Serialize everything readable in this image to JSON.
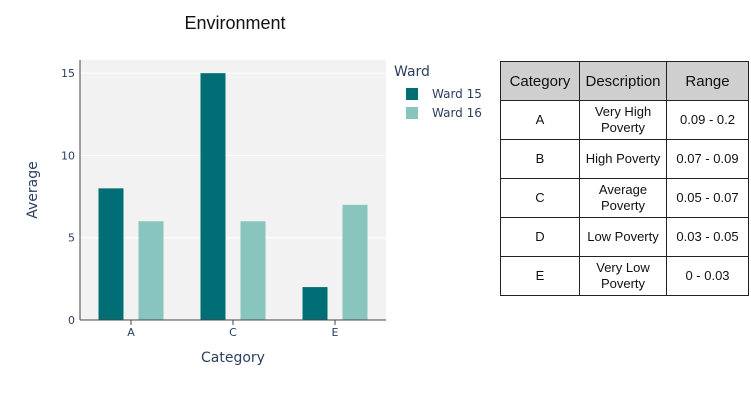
{
  "chart_data": {
    "type": "bar",
    "title": "Environment",
    "xlabel": "Category",
    "ylabel": "Average",
    "categories": [
      "A",
      "C",
      "E"
    ],
    "series": [
      {
        "name": "Ward 15",
        "color": "#006e74",
        "values": [
          8,
          15,
          2
        ]
      },
      {
        "name": "Ward 16",
        "color": "#88c5be",
        "values": [
          6,
          6,
          7
        ]
      }
    ],
    "ylim": [
      0,
      15.8
    ],
    "yticks": [
      0,
      5,
      10,
      15
    ],
    "grid": true,
    "legend_title": "Ward",
    "legend_position": "right"
  },
  "table": {
    "headers": [
      "Category",
      "Description",
      "Range"
    ],
    "rows": [
      [
        "A",
        "Very High Poverty",
        "0.09 - 0.2"
      ],
      [
        "B",
        "High Poverty",
        "0.07 - 0.09"
      ],
      [
        "C",
        "Average Poverty",
        "0.05 - 0.07"
      ],
      [
        "D",
        "Low Poverty",
        "0.03 - 0.05"
      ],
      [
        "E",
        "Very Low Poverty",
        "0 - 0.03"
      ]
    ]
  },
  "colors": {
    "plot_bg": "#f2f2f2",
    "axis_text": "#2a3f5f",
    "header_bg": "#cfcfcf"
  }
}
